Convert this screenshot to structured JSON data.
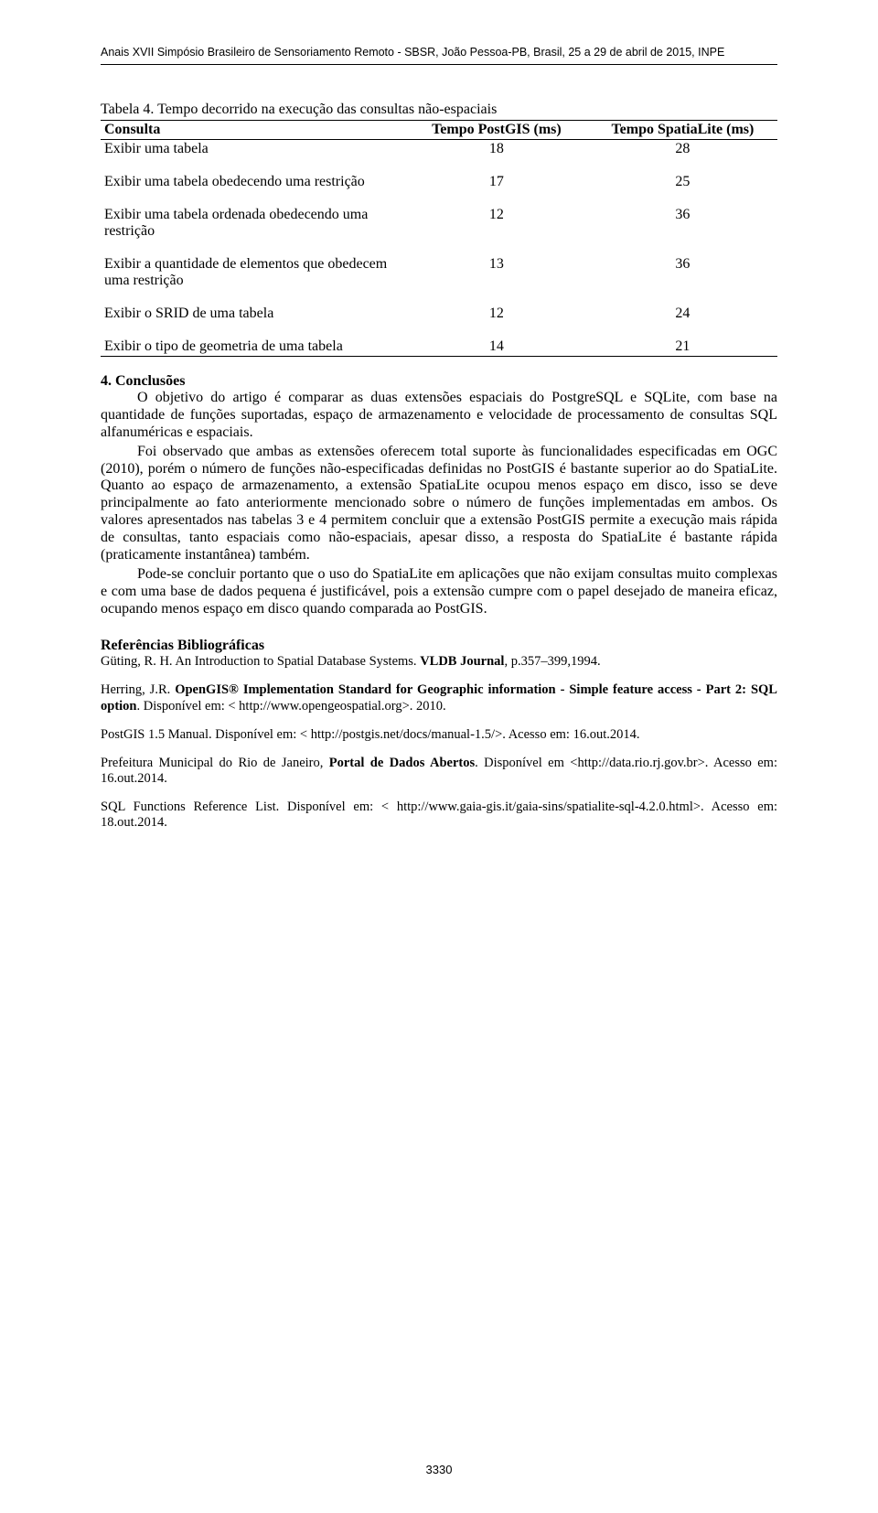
{
  "colors": {
    "text": "#000000",
    "background": "#ffffff",
    "rule": "#000000"
  },
  "typography": {
    "body_font": "Times New Roman",
    "header_font": "Arial",
    "body_size_pt": 12,
    "ref_size_pt": 11,
    "running_header_size_pt": 9
  },
  "header": {
    "running": "Anais XVII Simpósio Brasileiro de Sensoriamento Remoto - SBSR, João Pessoa-PB, Brasil, 25 a 29 de abril de 2015, INPE"
  },
  "table4": {
    "caption": "Tabela 4. Tempo decorrido na execução das consultas não-espaciais",
    "columns": [
      "Consulta",
      "Tempo PostGIS (ms)",
      "Tempo SpatiaLite (ms)"
    ],
    "rows": [
      {
        "label": "Exibir uma tabela",
        "postgis": "18",
        "spatialite": "28",
        "spacer_after": true
      },
      {
        "label": "Exibir uma tabela obedecendo uma restrição",
        "postgis": "17",
        "spatialite": "25",
        "spacer_after": true
      },
      {
        "label": "Exibir uma tabela ordenada obedecendo uma restrição",
        "postgis": "12",
        "spatialite": "36",
        "spacer_after": true
      },
      {
        "label": "Exibir a quantidade de elementos que obedecem uma restrição",
        "postgis": "13",
        "spatialite": "36",
        "spacer_after": true
      },
      {
        "label": "Exibir o SRID de uma tabela",
        "postgis": "12",
        "spatialite": "24",
        "spacer_after": true
      },
      {
        "label": "Exibir o tipo de geometria de uma tabela",
        "postgis": "14",
        "spatialite": "21",
        "spacer_after": false
      }
    ]
  },
  "conclusions": {
    "heading": "4. Conclusões",
    "para1": "O objetivo do artigo é comparar as duas extensões espaciais do PostgreSQL e SQLite, com base na quantidade de funções suportadas, espaço de armazenamento e velocidade de processamento de consultas SQL alfanuméricas e espaciais.",
    "para2": "Foi observado que ambas as extensões oferecem total suporte às funcionalidades especificadas em OGC (2010), porém o número de funções não-especificadas definidas no PostGIS é bastante superior ao do SpatiaLite. Quanto ao espaço de armazenamento, a extensão SpatiaLite ocupou menos espaço em disco, isso se deve principalmente ao fato anteriormente mencionado sobre o número de funções implementadas em ambos. Os valores apresentados nas tabelas 3 e 4 permitem concluir que a extensão PostGIS permite a execução mais rápida de consultas, tanto espaciais como não-espaciais, apesar disso, a resposta do SpatiaLite é bastante rápida (praticamente instantânea) também.",
    "para3": "Pode-se concluir portanto que o uso do SpatiaLite em aplicações que não exijam consultas muito complexas e com uma base de dados pequena é justificável, pois a extensão cumpre com o papel desejado de maneira eficaz, ocupando menos espaço em disco quando comparada ao PostGIS."
  },
  "references": {
    "heading": "Referências Bibliográficas",
    "entries": [
      {
        "html": "Güting, R. H. An Introduction to Spatial Database Systems. <b>VLDB Journal</b>, p.357–399,1994."
      },
      {
        "html": "Herring, J.R. <b>OpenGIS® Implementation Standard for Geographic information - Simple feature access - Part 2: SQL option</b>. Disponível em: &lt; http://www.opengeospatial.org&gt;. 2010."
      },
      {
        "html": "PostGIS 1.5 Manual. Disponível em: &lt; http://postgis.net/docs/manual-1.5/&gt;. Acesso em: 16.out.2014."
      },
      {
        "html": "Prefeitura Municipal do Rio de Janeiro, <b>Portal de Dados Abertos</b>. Disponível em &lt;http://data.rio.rj.gov.br&gt;. Acesso em: 16.out.2014."
      },
      {
        "html": "SQL Functions Reference List. Disponível em: &lt; http://www.gaia-gis.it/gaia-sins/spatialite-sql-4.2.0.html&gt;. Acesso em: 18.out.2014."
      }
    ]
  },
  "page_number": "3330"
}
